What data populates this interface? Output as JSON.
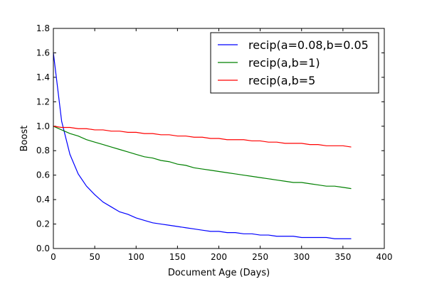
{
  "chart_data": {
    "type": "line",
    "title": "",
    "xlabel": "Document Age (Days)",
    "ylabel": "Boost",
    "xlim": [
      0,
      400
    ],
    "ylim": [
      0,
      1.8
    ],
    "xticks": [
      "0",
      "50",
      "100",
      "150",
      "200",
      "250",
      "300",
      "350",
      "400"
    ],
    "yticks": [
      "0.0",
      "0.2",
      "0.4",
      "0.6",
      "0.8",
      "1.0",
      "1.2",
      "1.4",
      "1.6",
      "1.8"
    ],
    "grid": false,
    "legend_position": "top-right",
    "x": [
      0,
      10,
      20,
      30,
      40,
      50,
      60,
      70,
      80,
      90,
      100,
      110,
      120,
      130,
      140,
      150,
      160,
      170,
      180,
      190,
      200,
      210,
      220,
      230,
      240,
      250,
      260,
      270,
      280,
      290,
      300,
      310,
      320,
      330,
      340,
      350,
      360
    ],
    "series": [
      {
        "name": "recip(a=0.08,b=0.05",
        "color": "#0000ff",
        "values": [
          1.6,
          1.04,
          0.77,
          0.61,
          0.51,
          0.44,
          0.38,
          0.34,
          0.3,
          0.28,
          0.25,
          0.23,
          0.21,
          0.2,
          0.19,
          0.18,
          0.17,
          0.16,
          0.15,
          0.14,
          0.14,
          0.13,
          0.13,
          0.12,
          0.12,
          0.11,
          0.11,
          0.1,
          0.1,
          0.1,
          0.09,
          0.09,
          0.09,
          0.09,
          0.08,
          0.08,
          0.08
        ]
      },
      {
        "name": "recip(a,b=1)",
        "color": "#008000",
        "values": [
          1.0,
          0.97,
          0.94,
          0.92,
          0.89,
          0.87,
          0.85,
          0.83,
          0.81,
          0.79,
          0.77,
          0.75,
          0.74,
          0.72,
          0.71,
          0.69,
          0.68,
          0.66,
          0.65,
          0.64,
          0.63,
          0.62,
          0.61,
          0.6,
          0.59,
          0.58,
          0.57,
          0.56,
          0.55,
          0.54,
          0.54,
          0.53,
          0.52,
          0.51,
          0.51,
          0.5,
          0.49
        ]
      },
      {
        "name": "recip(a,b=5",
        "color": "#ff0000",
        "values": [
          1.0,
          0.99,
          0.99,
          0.98,
          0.98,
          0.97,
          0.97,
          0.96,
          0.96,
          0.95,
          0.95,
          0.94,
          0.94,
          0.93,
          0.93,
          0.92,
          0.92,
          0.91,
          0.91,
          0.9,
          0.9,
          0.89,
          0.89,
          0.89,
          0.88,
          0.88,
          0.87,
          0.87,
          0.86,
          0.86,
          0.86,
          0.85,
          0.85,
          0.84,
          0.84,
          0.84,
          0.83
        ]
      }
    ]
  }
}
